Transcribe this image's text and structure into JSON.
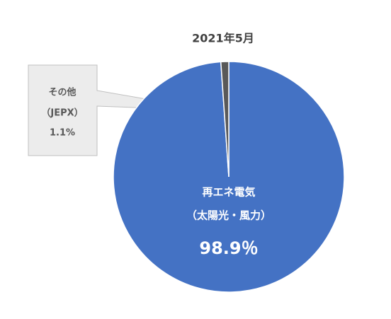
{
  "chart_data": {
    "type": "pie",
    "title": "2021年5月",
    "categories": [
      [
        "再エネ電気",
        "（太陽光・風力）"
      ],
      [
        "その他",
        "（JEPX）"
      ]
    ],
    "values": [
      98.9,
      1.1
    ],
    "value_labels": [
      "98.9％",
      "1.1%"
    ],
    "colors": [
      "#4472c4",
      "#595959"
    ]
  }
}
